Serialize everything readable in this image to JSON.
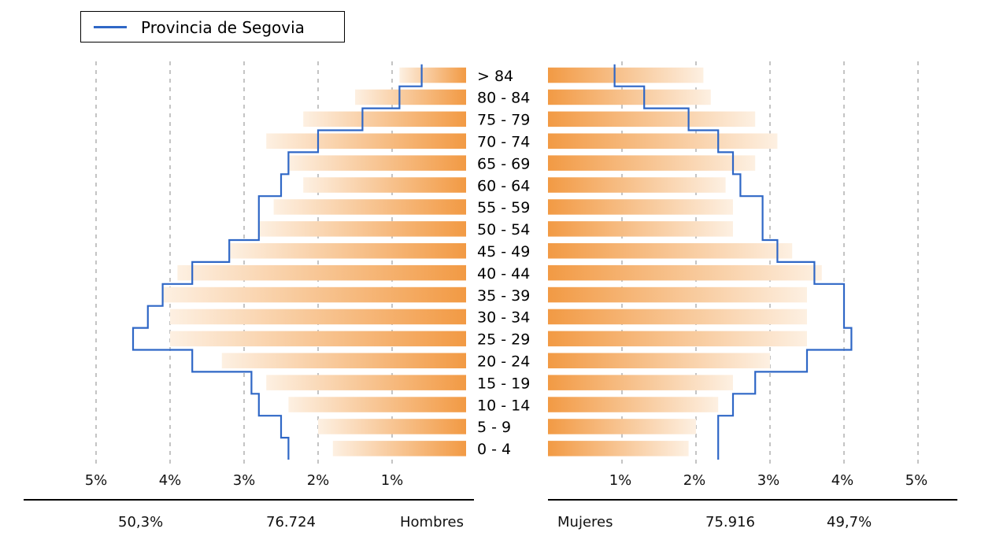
{
  "legend": {
    "label": "Provincia de Segovia",
    "color": "#2f67c6"
  },
  "colors": {
    "bar_dark": "#f29a44",
    "bar_light": "#fdf0e2",
    "outline": "#2f67c6",
    "grid": "#8a8a8a"
  },
  "summary": {
    "hombres": {
      "percent": "50,3%",
      "count": "76.724",
      "label": "Hombres"
    },
    "mujeres": {
      "label": "Mujeres",
      "count": "75.916",
      "percent": "49,7%"
    }
  },
  "chart_data": {
    "type": "bar",
    "orientation": "horizontal-pyramid",
    "categories": [
      "0 - 4",
      "5 - 9",
      "10 - 14",
      "15 - 19",
      "20 - 24",
      "25 - 29",
      "30 - 34",
      "35 - 39",
      "40 - 44",
      "45 - 49",
      "50 - 54",
      "55 - 59",
      "60 - 64",
      "65 - 69",
      "70 - 74",
      "75 - 79",
      "80 - 84",
      "> 84"
    ],
    "left_ticks": [
      "5%",
      "4%",
      "3%",
      "2%",
      "1%"
    ],
    "right_ticks": [
      "1%",
      "2%",
      "3%",
      "4%",
      "5%"
    ],
    "xlim": [
      0,
      5
    ],
    "grid": "vertical-dashed",
    "legend_position": "top-left",
    "series": [
      {
        "side": "left",
        "bars": [
          1.8,
          2.0,
          2.4,
          2.7,
          3.3,
          4.0,
          4.0,
          4.1,
          3.9,
          3.2,
          2.8,
          2.6,
          2.2,
          2.4,
          2.7,
          2.2,
          1.5,
          0.9
        ],
        "outline": [
          2.4,
          2.5,
          2.8,
          2.9,
          3.7,
          4.5,
          4.3,
          4.1,
          3.7,
          3.2,
          2.8,
          2.8,
          2.5,
          2.4,
          2.0,
          1.4,
          0.9,
          0.6
        ]
      },
      {
        "side": "right",
        "bars": [
          1.9,
          2.0,
          2.3,
          2.5,
          3.0,
          3.5,
          3.5,
          3.5,
          3.7,
          3.3,
          2.5,
          2.5,
          2.4,
          2.8,
          3.1,
          2.8,
          2.2,
          2.1
        ],
        "outline": [
          2.3,
          2.3,
          2.5,
          2.8,
          3.5,
          4.1,
          4.0,
          4.0,
          3.6,
          3.1,
          2.9,
          2.9,
          2.6,
          2.5,
          2.3,
          1.9,
          1.3,
          0.9
        ]
      }
    ]
  }
}
